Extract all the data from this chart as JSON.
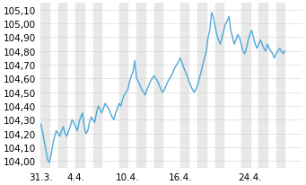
{
  "title": "",
  "ylabel_values": [
    104.0,
    104.1,
    104.2,
    104.3,
    104.4,
    104.5,
    104.6,
    104.7,
    104.8,
    104.9,
    105.0,
    105.1
  ],
  "ylim": [
    103.95,
    105.15
  ],
  "xlim_days": [
    0,
    30
  ],
  "line_color": "#4EA8D8",
  "background_color": "#ffffff",
  "plot_bg_color": "#ffffff",
  "grid_color": "#cccccc",
  "stripe_color": "#e8e8e8",
  "xtick_labels": [
    "31.3.",
    "4.4.",
    "10.4.",
    "16.4.",
    "24.4."
  ],
  "xtick_positions": [
    0,
    4,
    10,
    16,
    24
  ],
  "font_size": 7.5,
  "line_width": 1.0,
  "data_x": [
    0,
    0.2,
    0.4,
    0.6,
    0.8,
    1.0,
    1.2,
    1.4,
    1.6,
    1.8,
    2.0,
    2.2,
    2.4,
    2.6,
    2.8,
    3.0,
    3.2,
    3.4,
    3.6,
    3.8,
    4.0,
    4.2,
    4.4,
    4.6,
    4.8,
    5.0,
    5.2,
    5.4,
    5.6,
    5.8,
    6.0,
    6.2,
    6.4,
    6.6,
    6.8,
    7.0,
    7.2,
    7.4,
    7.6,
    7.8,
    8.0,
    8.2,
    8.4,
    8.6,
    8.8,
    9.0,
    9.2,
    9.4,
    9.6,
    9.8,
    10.0,
    10.2,
    10.4,
    10.6,
    10.8,
    11.0,
    11.2,
    11.4,
    11.6,
    11.8,
    12.0,
    12.2,
    12.4,
    12.6,
    12.8,
    13.0,
    13.2,
    13.4,
    13.6,
    13.8,
    14.0,
    14.2,
    14.4,
    14.6,
    14.8,
    15.0,
    15.2,
    15.4,
    15.6,
    15.8,
    16.0,
    16.2,
    16.4,
    16.6,
    16.8,
    17.0,
    17.2,
    17.4,
    17.6,
    17.8,
    18.0,
    18.2,
    18.4,
    18.6,
    18.8,
    19.0,
    19.2,
    19.4,
    19.6,
    19.8,
    20.0,
    20.2,
    20.4,
    20.6,
    20.8,
    21.0,
    21.2,
    21.4,
    21.6,
    21.8,
    22.0,
    22.2,
    22.4,
    22.6,
    22.8,
    23.0,
    23.2,
    23.4,
    23.6,
    23.8,
    24.0,
    24.2,
    24.4,
    24.6,
    24.8,
    25.0,
    25.2,
    25.4,
    25.6,
    25.8,
    26.0,
    26.2,
    26.4,
    26.6,
    26.8,
    27.0,
    27.2,
    27.4,
    27.6,
    27.8,
    28.0
  ],
  "data_y": [
    104.27,
    104.22,
    104.15,
    104.08,
    104.01,
    103.99,
    104.05,
    104.12,
    104.18,
    104.22,
    104.2,
    104.18,
    104.22,
    104.25,
    104.2,
    104.18,
    104.22,
    104.25,
    104.3,
    104.28,
    104.25,
    104.22,
    104.28,
    104.32,
    104.35,
    104.25,
    104.2,
    104.22,
    104.28,
    104.32,
    104.3,
    104.28,
    104.35,
    104.4,
    104.38,
    104.35,
    104.38,
    104.42,
    104.4,
    104.38,
    104.35,
    104.32,
    104.3,
    104.35,
    104.38,
    104.42,
    104.4,
    104.45,
    104.48,
    104.5,
    104.52,
    104.58,
    104.62,
    104.65,
    104.73,
    104.6,
    104.58,
    104.55,
    104.52,
    104.5,
    104.48,
    104.52,
    104.55,
    104.58,
    104.6,
    104.62,
    104.6,
    104.58,
    104.55,
    104.52,
    104.5,
    104.52,
    104.55,
    104.58,
    104.6,
    104.62,
    104.65,
    104.68,
    104.7,
    104.72,
    104.75,
    104.72,
    104.68,
    104.65,
    104.62,
    104.58,
    104.55,
    104.52,
    104.5,
    104.52,
    104.55,
    104.6,
    104.65,
    104.7,
    104.75,
    104.8,
    104.9,
    104.95,
    105.08,
    105.05,
    104.98,
    104.92,
    104.88,
    104.85,
    104.9,
    104.95,
    105.0,
    105.02,
    105.05,
    104.95,
    104.9,
    104.85,
    104.88,
    104.92,
    104.9,
    104.85,
    104.8,
    104.78,
    104.82,
    104.88,
    104.92,
    104.95,
    104.9,
    104.85,
    104.82,
    104.85,
    104.88,
    104.85,
    104.82,
    104.8,
    104.85,
    104.82,
    104.8,
    104.78,
    104.75,
    104.78,
    104.8,
    104.82,
    104.8,
    104.78,
    104.8
  ]
}
